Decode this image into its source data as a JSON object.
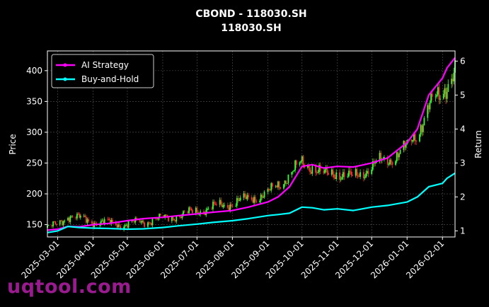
{
  "watermark": "uqtool.com",
  "chart_data": {
    "type": "line",
    "title": "CBOND - 118030.SH",
    "subtitle": "118030.SH",
    "ylabel": "Price",
    "ylabel_right": "Return",
    "xlabel": "",
    "ylim": [
      130,
      432
    ],
    "ylim_right": [
      0.82,
      6.3
    ],
    "yticks": [
      150,
      200,
      250,
      300,
      350,
      400
    ],
    "yticks_right": [
      1,
      2,
      3,
      4,
      5,
      6
    ],
    "xticks": [
      "2025-03-01",
      "2025-04-01",
      "2025-05-01",
      "2025-06-01",
      "2025-07-01",
      "2025-08-01",
      "2025-09-01",
      "2025-10-01",
      "2025-11-01",
      "2025-12-01",
      "2026-01-01",
      "2026-02-01"
    ],
    "x_range": [
      "2025-02-20",
      "2026-02-12"
    ],
    "grid": true,
    "legend_position": "top-left",
    "colors": {
      "ai": "#ff00ff",
      "bh": "#00ffff",
      "up": "#33ff33",
      "down": "#ff3333",
      "bg": "#000000"
    },
    "series": [
      {
        "name": "AI Strategy",
        "axis": "right",
        "color": "#ff00ff",
        "x": [
          "2025-02-20",
          "2025-03-01",
          "2025-03-10",
          "2025-03-20",
          "2025-04-01",
          "2025-04-15",
          "2025-05-01",
          "2025-05-15",
          "2025-06-01",
          "2025-06-15",
          "2025-07-01",
          "2025-07-15",
          "2025-08-01",
          "2025-08-15",
          "2025-09-01",
          "2025-09-10",
          "2025-09-20",
          "2025-10-01",
          "2025-10-10",
          "2025-10-20",
          "2025-11-01",
          "2025-11-15",
          "2025-12-01",
          "2025-12-15",
          "2026-01-01",
          "2026-01-10",
          "2026-01-20",
          "2026-02-01",
          "2026-02-05",
          "2026-02-12"
        ],
        "values": [
          1.02,
          1.05,
          1.13,
          1.12,
          1.18,
          1.22,
          1.3,
          1.36,
          1.4,
          1.45,
          1.5,
          1.55,
          1.6,
          1.7,
          1.85,
          2.0,
          2.3,
          2.9,
          2.95,
          2.85,
          2.9,
          2.88,
          3.0,
          3.15,
          3.6,
          4.0,
          5.0,
          5.5,
          5.8,
          6.1
        ]
      },
      {
        "name": "Buy-and-Hold",
        "axis": "right",
        "color": "#00ffff",
        "x": [
          "2025-02-20",
          "2025-03-01",
          "2025-03-10",
          "2025-03-20",
          "2025-04-01",
          "2025-04-15",
          "2025-05-01",
          "2025-05-15",
          "2025-06-01",
          "2025-06-15",
          "2025-07-01",
          "2025-07-15",
          "2025-08-01",
          "2025-08-15",
          "2025-09-01",
          "2025-09-10",
          "2025-09-20",
          "2025-10-01",
          "2025-10-10",
          "2025-10-20",
          "2025-11-01",
          "2025-11-15",
          "2025-12-01",
          "2025-12-15",
          "2026-01-01",
          "2026-01-10",
          "2026-01-20",
          "2026-02-01",
          "2026-02-05",
          "2026-02-12"
        ],
        "values": [
          0.95,
          1.0,
          1.13,
          1.1,
          1.08,
          1.07,
          1.05,
          1.06,
          1.1,
          1.15,
          1.2,
          1.25,
          1.3,
          1.36,
          1.45,
          1.48,
          1.52,
          1.7,
          1.68,
          1.62,
          1.65,
          1.6,
          1.7,
          1.75,
          1.85,
          2.0,
          2.3,
          2.4,
          2.55,
          2.7
        ]
      },
      {
        "name": "",
        "type": "candlestick",
        "axis": "left",
        "color": "#33ff33",
        "x": [
          "2025-02-20",
          "2025-03-01",
          "2025-03-10",
          "2025-03-20",
          "2025-04-01",
          "2025-04-15",
          "2025-05-01",
          "2025-05-15",
          "2025-06-01",
          "2025-06-15",
          "2025-07-01",
          "2025-07-15",
          "2025-08-01",
          "2025-08-15",
          "2025-09-01",
          "2025-09-10",
          "2025-09-20",
          "2025-10-01",
          "2025-10-10",
          "2025-10-20",
          "2025-11-01",
          "2025-11-15",
          "2025-12-01",
          "2025-12-15",
          "2026-01-01",
          "2026-01-10",
          "2026-01-20",
          "2026-02-01",
          "2026-02-05",
          "2026-02-12"
        ],
        "values": [
          145,
          150,
          165,
          160,
          155,
          152,
          150,
          155,
          160,
          165,
          172,
          178,
          185,
          192,
          200,
          215,
          230,
          250,
          245,
          230,
          235,
          225,
          245,
          255,
          275,
          300,
          340,
          365,
          380,
          400
        ]
      }
    ]
  }
}
